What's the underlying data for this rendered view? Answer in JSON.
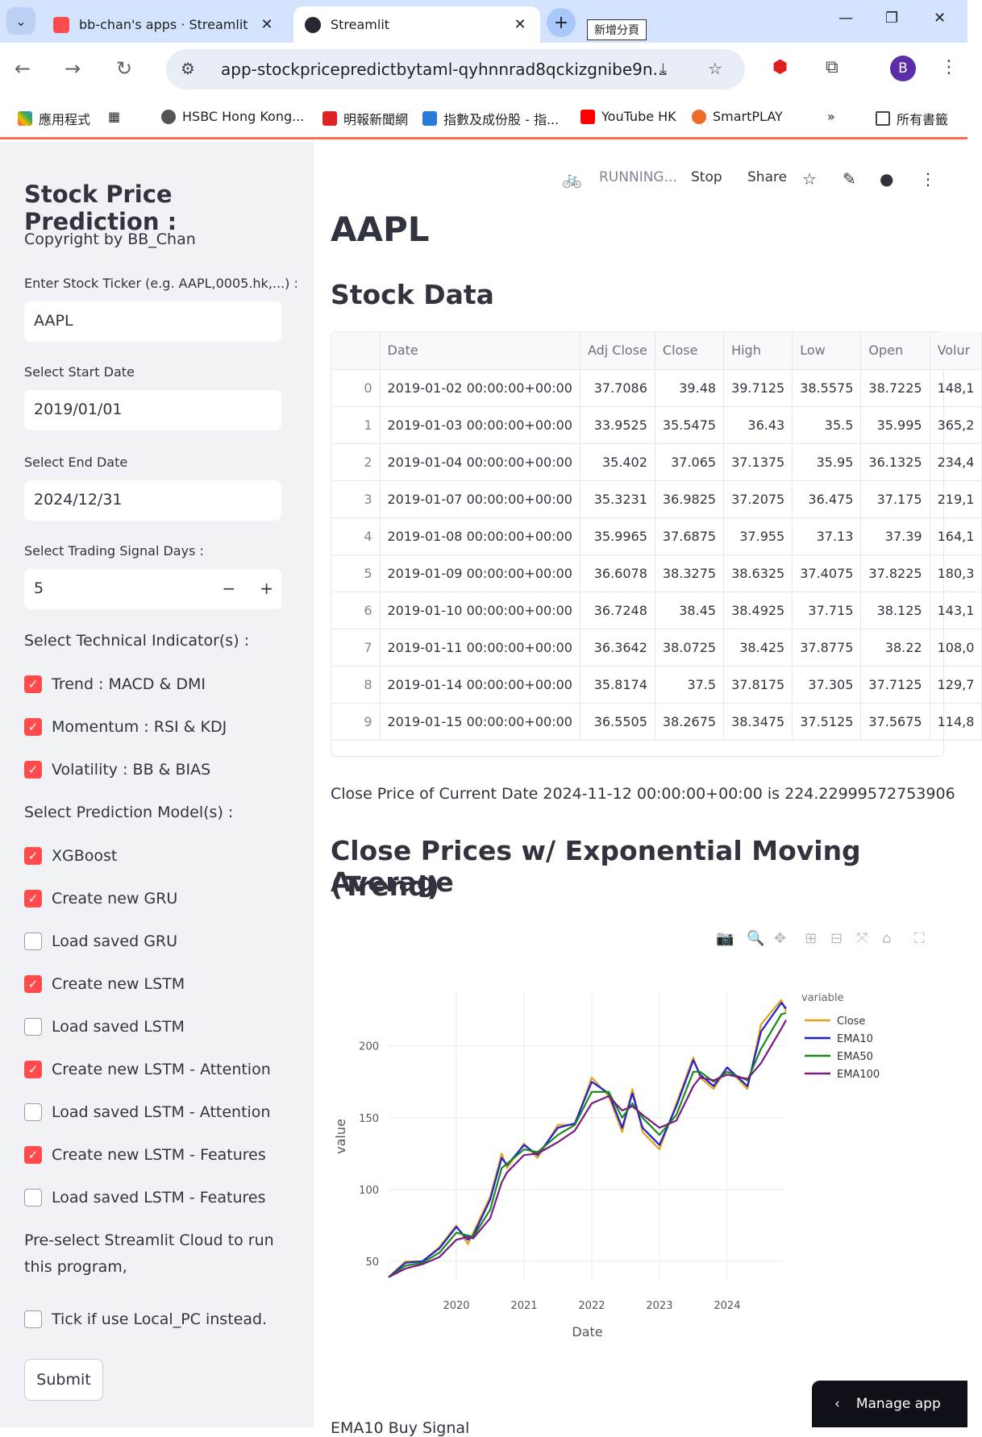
{
  "browser": {
    "tabs": [
      {
        "title": "bb-chan's apps · Streamlit",
        "active": false
      },
      {
        "title": "Streamlit",
        "active": true
      }
    ],
    "new_tab_tooltip": "新增分頁",
    "url": "app-stockpricepredictbytaml-qyhnnrad8qckizgnibe9n...",
    "avatar_letter": "B",
    "bookmarks": [
      "應用程式",
      "HSBC Hong Kong...",
      "明報新聞網",
      "指數及成份股 - 指...",
      "YouTube HK",
      "SmartPLAY",
      "所有書籤"
    ]
  },
  "sidebar": {
    "title": "Stock Price Prediction :",
    "copyright": "Copyright by BB_Chan",
    "ticker_label": "Enter Stock Ticker (e.g. AAPL,0005.hk,...) :",
    "ticker_value": "AAPL",
    "start_label": "Select Start Date",
    "start_value": "2019/01/01",
    "end_label": "Select End Date",
    "end_value": "2024/12/31",
    "days_label": "Select Trading Signal Days :",
    "days_value": "5",
    "indicators_label": "Select Technical Indicator(s) :",
    "indicators": [
      {
        "label": "Trend : MACD & DMI",
        "checked": true
      },
      {
        "label": "Momentum : RSI & KDJ",
        "checked": true
      },
      {
        "label": "Volatility : BB & BIAS",
        "checked": true
      }
    ],
    "models_label": "Select Prediction Model(s) :",
    "models": [
      {
        "label": "XGBoost",
        "checked": true
      },
      {
        "label": "Create new GRU",
        "checked": true
      },
      {
        "label": "Load saved GRU",
        "checked": false
      },
      {
        "label": "Create new LSTM",
        "checked": true
      },
      {
        "label": "Load saved LSTM",
        "checked": false
      },
      {
        "label": "Create new LSTM - Attention",
        "checked": true
      },
      {
        "label": "Load saved LSTM - Attention",
        "checked": false
      },
      {
        "label": "Create new LSTM - Features",
        "checked": true
      },
      {
        "label": "Load saved LSTM - Features",
        "checked": false
      }
    ],
    "preselect_line1": "Pre-select Streamlit Cloud to run",
    "preselect_line2": "this program,",
    "local_pc": {
      "label": "Tick if use Local_PC instead.",
      "checked": false
    },
    "submit_label": "Submit"
  },
  "header": {
    "running": "RUNNING...",
    "stop": "Stop",
    "share": "Share"
  },
  "main": {
    "ticker_heading": "AAPL",
    "stock_data_heading": "Stock Data",
    "columns": [
      "",
      "Date",
      "Adj Close",
      "Close",
      "High",
      "Low",
      "Open",
      "Volur"
    ],
    "rows": [
      [
        "0",
        "2019-01-02 00:00:00+00:00",
        "37.7086",
        "39.48",
        "39.7125",
        "38.5575",
        "38.7225",
        "148,1"
      ],
      [
        "1",
        "2019-01-03 00:00:00+00:00",
        "33.9525",
        "35.5475",
        "36.43",
        "35.5",
        "35.995",
        "365,2"
      ],
      [
        "2",
        "2019-01-04 00:00:00+00:00",
        "35.402",
        "37.065",
        "37.1375",
        "35.95",
        "36.1325",
        "234,4"
      ],
      [
        "3",
        "2019-01-07 00:00:00+00:00",
        "35.3231",
        "36.9825",
        "37.2075",
        "36.475",
        "37.175",
        "219,1"
      ],
      [
        "4",
        "2019-01-08 00:00:00+00:00",
        "35.9965",
        "37.6875",
        "37.955",
        "37.13",
        "37.39",
        "164,1"
      ],
      [
        "5",
        "2019-01-09 00:00:00+00:00",
        "36.6078",
        "38.3275",
        "38.6325",
        "37.4075",
        "37.8225",
        "180,3"
      ],
      [
        "6",
        "2019-01-10 00:00:00+00:00",
        "36.7248",
        "38.45",
        "38.4925",
        "37.715",
        "38.125",
        "143,1"
      ],
      [
        "7",
        "2019-01-11 00:00:00+00:00",
        "36.3642",
        "38.0725",
        "38.425",
        "37.8775",
        "38.22",
        "108,0"
      ],
      [
        "8",
        "2019-01-14 00:00:00+00:00",
        "35.8174",
        "37.5",
        "37.8175",
        "37.305",
        "37.7125",
        "129,7"
      ],
      [
        "9",
        "2019-01-15 00:00:00+00:00",
        "36.5505",
        "38.2675",
        "38.3475",
        "37.5125",
        "37.5675",
        "114,8"
      ]
    ],
    "close_price_text": "Close Price of Current Date 2024-11-12 00:00:00+00:00 is 224.22999572753906",
    "chart_heading_line1": "Close Prices w/ Exponential Moving Average",
    "chart_heading_line2": "(Trend)",
    "next_text": "EMA10 Buy Signal"
  },
  "manage_app": "Manage app",
  "chart_data": {
    "type": "line",
    "title": "",
    "xlabel": "Date",
    "ylabel": "value",
    "legend_title": "variable",
    "legend_position": "top-right",
    "x": [
      2019.0,
      2019.25,
      2019.5,
      2019.75,
      2020.0,
      2020.17,
      2020.25,
      2020.5,
      2020.67,
      2020.75,
      2021.0,
      2021.2,
      2021.5,
      2021.75,
      2022.0,
      2022.25,
      2022.45,
      2022.6,
      2022.75,
      2023.0,
      2023.25,
      2023.5,
      2023.6,
      2023.8,
      2024.0,
      2024.3,
      2024.5,
      2024.8,
      2024.87
    ],
    "xticks": [
      "2020",
      "2021",
      "2022",
      "2023",
      "2024"
    ],
    "xtick_values": [
      2020,
      2021,
      2022,
      2023,
      2024
    ],
    "yticks": [
      50,
      100,
      150,
      200
    ],
    "ylim": [
      36,
      238
    ],
    "xlim": [
      2019.0,
      2024.87
    ],
    "series": [
      {
        "name": "Close",
        "color": "#e5a11a",
        "values": [
          39,
          50,
          50,
          60,
          75,
          62,
          70,
          95,
          125,
          115,
          132,
          122,
          145,
          145,
          178,
          165,
          140,
          170,
          140,
          128,
          160,
          192,
          178,
          170,
          185,
          170,
          215,
          232,
          224
        ]
      },
      {
        "name": "EMA10",
        "color": "#1f1fd8",
        "values": [
          39,
          49,
          50,
          59,
          74,
          65,
          68,
          93,
          122,
          117,
          131,
          124,
          143,
          146,
          175,
          167,
          143,
          167,
          143,
          131,
          158,
          190,
          180,
          172,
          185,
          172,
          210,
          230,
          226
        ]
      },
      {
        "name": "EMA50",
        "color": "#1a8a1a",
        "values": [
          39,
          47,
          49,
          56,
          70,
          68,
          67,
          86,
          115,
          118,
          128,
          126,
          138,
          145,
          168,
          168,
          150,
          160,
          150,
          138,
          152,
          182,
          182,
          175,
          182,
          176,
          198,
          222,
          223
        ]
      },
      {
        "name": "EMA100",
        "color": "#7a1a82",
        "values": [
          39,
          45,
          48,
          53,
          65,
          67,
          66,
          80,
          105,
          112,
          124,
          125,
          133,
          141,
          160,
          165,
          155,
          158,
          152,
          143,
          148,
          172,
          178,
          176,
          180,
          177,
          188,
          212,
          218
        ]
      }
    ]
  }
}
